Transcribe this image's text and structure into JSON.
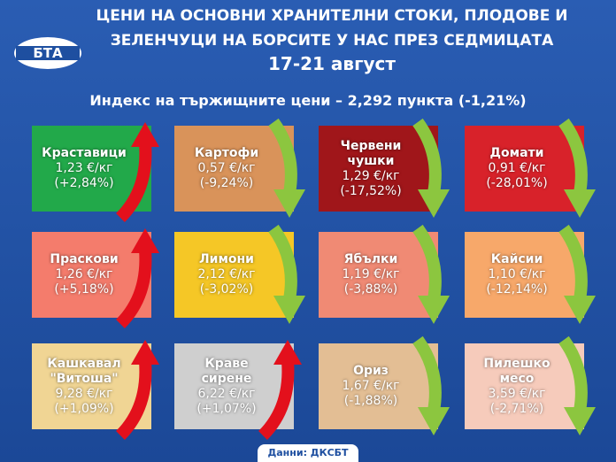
{
  "header": {
    "logo": "БТА",
    "title_lines": [
      "ЦЕНИ НА ОСНОВНИ ХРАНИТЕЛНИ СТОКИ, ПЛОДОВЕ И",
      "ЗЕЛЕНЧУЦИ НА БОРСИТЕ У НАС ПРЕЗ СЕДМИЦАТА"
    ],
    "date": "17-21 август"
  },
  "index": "Индекс на тържищните цени – 2,292 пункта (-1,21%)",
  "cards": [
    {
      "name_lines": [
        "Краставици"
      ],
      "price": "1,23 €/кг",
      "change": "(+2,84%)",
      "direction": "up",
      "color": "#22a94a"
    },
    {
      "name_lines": [
        "Картофи"
      ],
      "price": "0,57 €/кг",
      "change": "(-9,24%)",
      "direction": "down",
      "color": "#d9935a"
    },
    {
      "name_lines": [
        "Червени",
        "чушки"
      ],
      "price": "1,29 €/кг",
      "change": "(-17,52%)",
      "direction": "down",
      "color": "#a0161a"
    },
    {
      "name_lines": [
        "Домати"
      ],
      "price": "0,91 €/кг",
      "change": "(-28,01%)",
      "direction": "down",
      "color": "#d8222a"
    },
    {
      "name_lines": [
        "Праскови"
      ],
      "price": "1,26 €/кг",
      "change": "(+5,18%)",
      "direction": "up",
      "color": "#f47c6c"
    },
    {
      "name_lines": [
        "Лимони"
      ],
      "price": "2,12 €/кг",
      "change": "(-3,02%)",
      "direction": "down",
      "color": "#f5c726"
    },
    {
      "name_lines": [
        "Ябълки"
      ],
      "price": "1,19 €/кг",
      "change": "(-3,88%)",
      "direction": "down",
      "color": "#f08a74"
    },
    {
      "name_lines": [
        "Кайсии"
      ],
      "price": "1,10 €/кг",
      "change": "(-12,14%)",
      "direction": "down",
      "color": "#f7a86a"
    },
    {
      "name_lines": [
        "Кашкавал",
        "\"Витоша\""
      ],
      "price": "9,28 €/кг",
      "change": "(+1,09%)",
      "direction": "up",
      "color": "#f0d594"
    },
    {
      "name_lines": [
        "Краве",
        "сирене"
      ],
      "price": "6,22 €/кг",
      "change": "(+1,07%)",
      "direction": "up",
      "color": "#cfcfcf"
    },
    {
      "name_lines": [
        "Ориз"
      ],
      "price": "1,67 €/кг",
      "change": "(-1,88%)",
      "direction": "down",
      "color": "#e3be94"
    },
    {
      "name_lines": [
        "Пилешко",
        "месо"
      ],
      "price": "3,59 €/кг",
      "change": "(-2,71%)",
      "direction": "down",
      "color": "#f6cbbb"
    }
  ],
  "source": "Данни: ДКСБТ"
}
